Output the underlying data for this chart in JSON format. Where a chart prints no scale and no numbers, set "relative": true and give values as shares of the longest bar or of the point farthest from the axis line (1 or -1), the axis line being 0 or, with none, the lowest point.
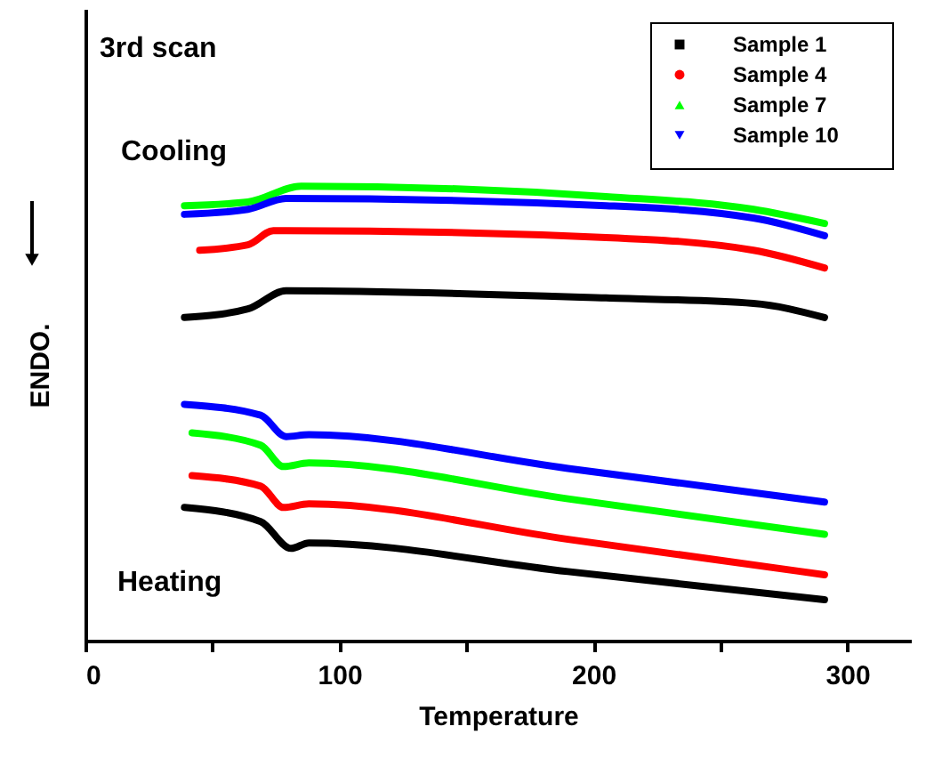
{
  "chart_data": {
    "type": "line",
    "relative": true,
    "xlabel": "Temperature",
    "ylabel": "ENDO.",
    "annotations": [
      "3rd scan",
      "Cooling",
      "Heating"
    ],
    "xlim": [
      0,
      325
    ],
    "xticks": [
      0,
      {
        "value": 50,
        "label": null
      },
      100,
      {
        "value": 150,
        "label": null
      },
      200,
      {
        "value": 250,
        "label": null
      },
      300
    ],
    "grid": false,
    "legend": "top right",
    "marker": "none",
    "line_style": "solid",
    "series": [
      {
        "name": "Sample 1",
        "color": "#000000",
        "x": [
          39,
          64,
          79,
          205,
          263,
          291
        ],
        "values": [
          0.711,
          0.73,
          0.77,
          0.754,
          0.742,
          0.711
        ]
      },
      {
        "name": "Sample 4",
        "color": "#ff0000",
        "x": [
          45,
          64,
          74,
          79,
          205,
          263,
          291
        ],
        "values": [
          0.859,
          0.871,
          0.902,
          0.902,
          0.887,
          0.859,
          0.82
        ]
      },
      {
        "name": "Sample 7",
        "color": "#00ff00",
        "x": [
          39,
          64,
          85,
          205,
          263,
          291
        ],
        "values": [
          0.957,
          0.965,
          1.0,
          0.977,
          0.949,
          0.918
        ]
      },
      {
        "name": "Sample 10",
        "color": "#0000ff",
        "x": [
          39,
          64,
          79,
          205,
          263,
          291
        ],
        "values": [
          0.938,
          0.949,
          0.973,
          0.957,
          0.93,
          0.891
        ]
      },
      {
        "color": "#000000",
        "x": [
          39,
          69,
          81,
          88,
          190,
          291
        ],
        "values": [
          0.293,
          0.262,
          0.203,
          0.215,
          0.152,
          0.09
        ]
      },
      {
        "color": "#ff0000",
        "x": [
          42,
          69,
          78,
          88,
          190,
          291
        ],
        "values": [
          0.363,
          0.34,
          0.293,
          0.301,
          0.223,
          0.145
        ]
      },
      {
        "color": "#00ff00",
        "x": [
          42,
          69,
          78,
          88,
          190,
          291
        ],
        "values": [
          0.457,
          0.43,
          0.383,
          0.391,
          0.312,
          0.234
        ]
      },
      {
        "color": "#0000ff",
        "x": [
          39,
          69,
          79,
          88,
          190,
          291
        ],
        "values": [
          0.52,
          0.496,
          0.449,
          0.453,
          0.379,
          0.305
        ]
      }
    ]
  }
}
